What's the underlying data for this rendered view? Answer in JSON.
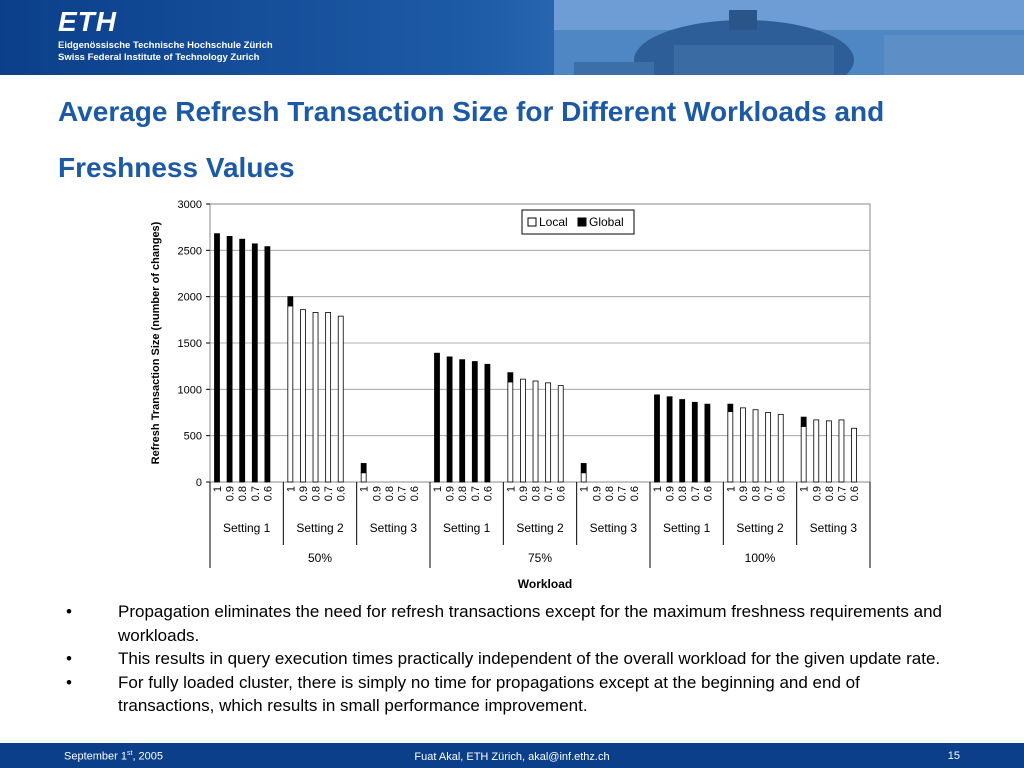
{
  "banner": {
    "logo": "ETH",
    "line1": "Eidgenössische Technische Hochschule Zürich",
    "line2": "Swiss Federal Institute of Technology Zurich"
  },
  "title": "Average Refresh Transaction Size for Different Workloads and Freshness Values",
  "chart_data": {
    "type": "bar",
    "stacked": true,
    "ylabel": "Refresh Transaction Size (number of changes)",
    "xlabel": "Workload",
    "ylim": [
      0,
      3000
    ],
    "yticks": [
      0,
      500,
      1000,
      1500,
      2000,
      2500,
      3000
    ],
    "legend": {
      "placement": "top-right",
      "entries": [
        "Local",
        "Global"
      ]
    },
    "colors": {
      "Local": "#ffffff",
      "Global": "#000000"
    },
    "groups": [
      {
        "workload": "50%",
        "setting": "Setting 1",
        "freshness": [
          "1",
          "0.9",
          "0.8",
          "0.7",
          "0.6"
        ],
        "local": [
          0,
          0,
          0,
          0,
          0
        ],
        "global": [
          2680,
          2650,
          2620,
          2570,
          2540
        ]
      },
      {
        "workload": "50%",
        "setting": "Setting 2",
        "freshness": [
          "1",
          "0.9",
          "0.8",
          "0.7",
          "0.6"
        ],
        "local": [
          1900,
          1860,
          1830,
          1830,
          1790
        ],
        "global": [
          100,
          0,
          0,
          0,
          0
        ]
      },
      {
        "workload": "50%",
        "setting": "Setting 3",
        "freshness": [
          "1",
          "0.9",
          "0.8",
          "0.7",
          "0.6"
        ],
        "local": [
          100,
          0,
          0,
          0,
          0
        ],
        "global": [
          100,
          0,
          0,
          0,
          0
        ]
      },
      {
        "workload": "75%",
        "setting": "Setting 1",
        "freshness": [
          "1",
          "0.9",
          "0.8",
          "0.7",
          "0.6"
        ],
        "local": [
          0,
          0,
          0,
          0,
          0
        ],
        "global": [
          1390,
          1350,
          1320,
          1300,
          1270
        ]
      },
      {
        "workload": "75%",
        "setting": "Setting 2",
        "freshness": [
          "1",
          "0.9",
          "0.8",
          "0.7",
          "0.6"
        ],
        "local": [
          1080,
          1110,
          1090,
          1070,
          1040
        ],
        "global": [
          100,
          0,
          0,
          0,
          0
        ]
      },
      {
        "workload": "75%",
        "setting": "Setting 3",
        "freshness": [
          "1",
          "0.9",
          "0.8",
          "0.7",
          "0.6"
        ],
        "local": [
          100,
          0,
          0,
          0,
          0
        ],
        "global": [
          100,
          0,
          0,
          0,
          0
        ]
      },
      {
        "workload": "100%",
        "setting": "Setting 1",
        "freshness": [
          "1",
          "0.9",
          "0.8",
          "0.7",
          "0.6"
        ],
        "local": [
          0,
          0,
          0,
          0,
          0
        ],
        "global": [
          940,
          920,
          890,
          860,
          840
        ]
      },
      {
        "workload": "100%",
        "setting": "Setting 2",
        "freshness": [
          "1",
          "0.9",
          "0.8",
          "0.7",
          "0.6"
        ],
        "local": [
          760,
          800,
          780,
          750,
          730
        ],
        "global": [
          80,
          0,
          0,
          0,
          0
        ]
      },
      {
        "workload": "100%",
        "setting": "Setting 3",
        "freshness": [
          "1",
          "0.9",
          "0.8",
          "0.7",
          "0.6"
        ],
        "local": [
          600,
          670,
          660,
          670,
          580
        ],
        "global": [
          100,
          0,
          0,
          0,
          0
        ]
      }
    ]
  },
  "bullets": [
    "Propagation eliminates the need for refresh transactions except for the maximum freshness requirements and workloads.",
    "This results in query execution times practically independent of the overall workload for the given update rate.",
    "For fully loaded cluster, there is simply no time for propagations except at the beginning and end of transactions, which results in small performance improvement."
  ],
  "footer": {
    "date_prefix": "September 1",
    "date_sup": "st",
    "date_suffix": ", 2005",
    "author": "Fuat Akal, ETH Zürich, akal@inf.ethz.ch",
    "page": "15"
  }
}
